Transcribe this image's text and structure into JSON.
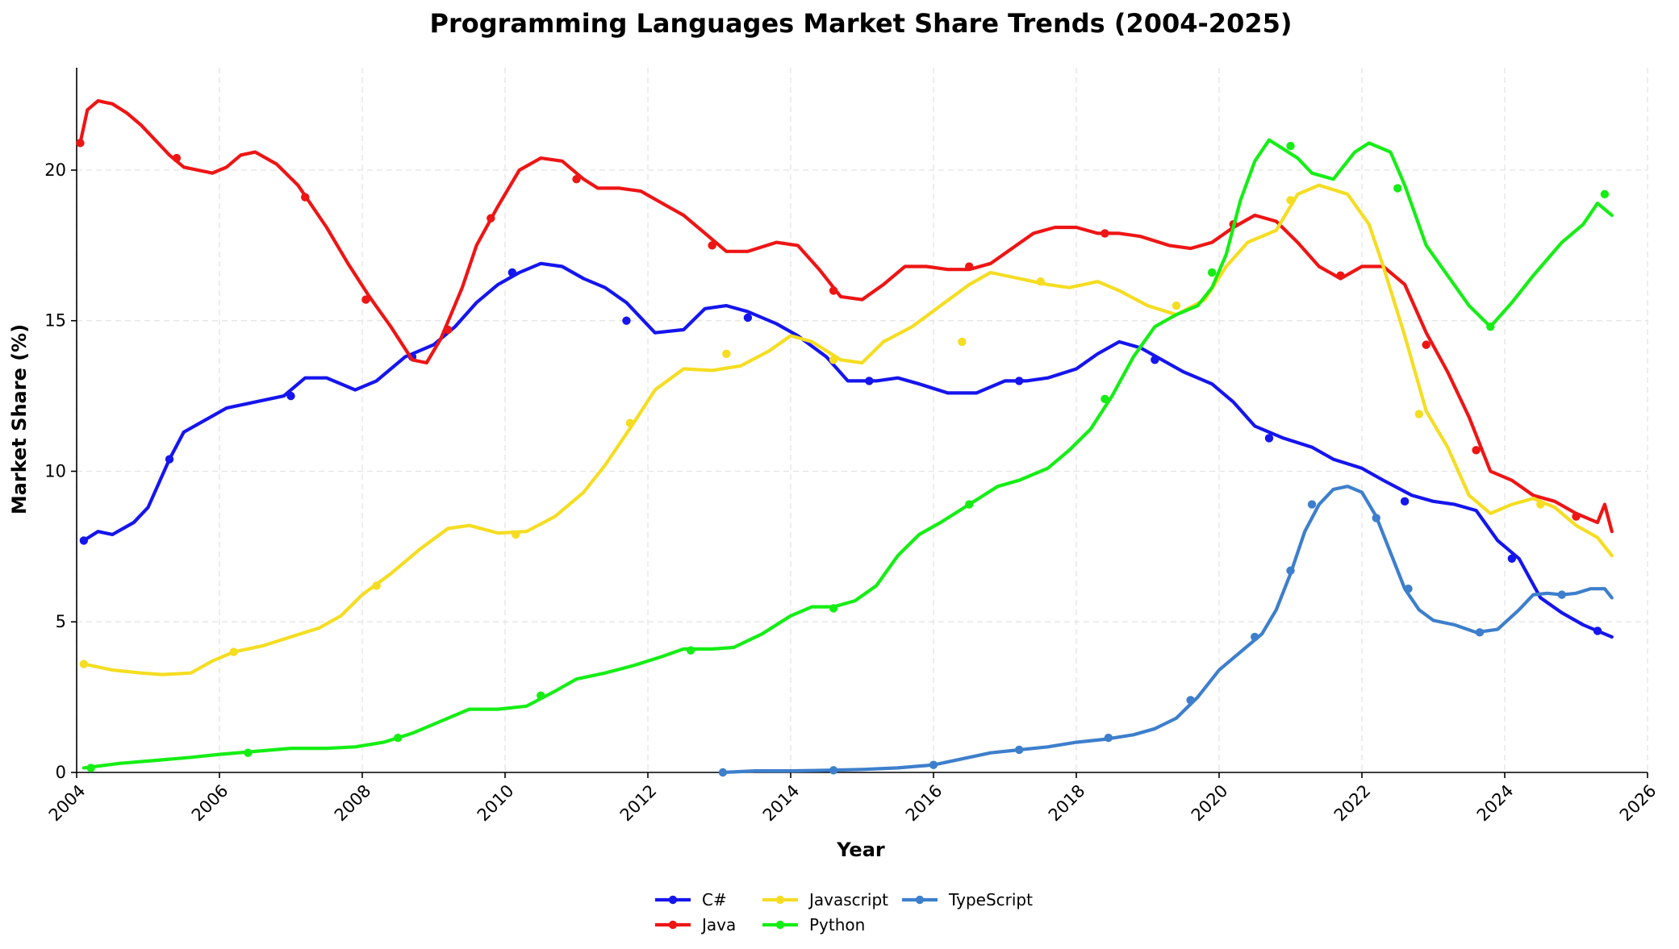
{
  "chart_data": {
    "type": "line",
    "title": "Programming Languages Market Share Trends (2004-2025)",
    "xlabel": "Year",
    "ylabel": "Market Share (%)",
    "xlim": [
      2004,
      2026
    ],
    "ylim": [
      0,
      23.4
    ],
    "x_ticks": [
      2004,
      2006,
      2008,
      2010,
      2012,
      2014,
      2016,
      2018,
      2020,
      2022,
      2024,
      2026
    ],
    "y_ticks": [
      0,
      5,
      10,
      15,
      20
    ],
    "grid": true,
    "legend_position": "bottom-center",
    "series": [
      {
        "name": "C#",
        "color": "#1515ee",
        "x": [
          2004.1,
          2004.3,
          2004.5,
          2004.8,
          2005.0,
          2005.3,
          2005.5,
          2005.8,
          2006.1,
          2006.5,
          2006.9,
          2007.2,
          2007.5,
          2007.9,
          2008.2,
          2008.6,
          2009.0,
          2009.3,
          2009.6,
          2009.9,
          2010.2,
          2010.5,
          2010.8,
          2011.1,
          2011.4,
          2011.7,
          2012.1,
          2012.5,
          2012.8,
          2013.1,
          2013.4,
          2013.8,
          2014.1,
          2014.5,
          2014.8,
          2015.2,
          2015.5,
          2015.8,
          2016.2,
          2016.6,
          2017.0,
          2017.3,
          2017.6,
          2018.0,
          2018.3,
          2018.6,
          2018.9,
          2019.2,
          2019.5,
          2019.9,
          2020.2,
          2020.5,
          2020.9,
          2021.3,
          2021.6,
          2022.0,
          2022.3,
          2022.7,
          2023.0,
          2023.3,
          2023.6,
          2023.9,
          2024.2,
          2024.5,
          2024.8,
          2025.1,
          2025.3,
          2025.5
        ],
        "y": [
          7.7,
          8.0,
          7.9,
          8.3,
          8.8,
          10.4,
          11.3,
          11.7,
          12.1,
          12.3,
          12.5,
          13.1,
          13.1,
          12.7,
          13.0,
          13.8,
          14.2,
          14.8,
          15.6,
          16.2,
          16.6,
          16.9,
          16.8,
          16.4,
          16.1,
          15.6,
          14.6,
          14.7,
          15.4,
          15.5,
          15.3,
          14.9,
          14.5,
          13.8,
          13.0,
          13.0,
          13.1,
          12.9,
          12.6,
          12.6,
          13.0,
          13.0,
          13.1,
          13.4,
          13.9,
          14.3,
          14.1,
          13.7,
          13.3,
          12.9,
          12.3,
          11.5,
          11.1,
          10.8,
          10.4,
          10.1,
          9.7,
          9.2,
          9.0,
          8.9,
          8.7,
          7.7,
          7.1,
          5.8,
          5.3,
          4.9,
          4.7,
          4.5
        ],
        "marker_x": [
          2004.1,
          2005.3,
          2007.0,
          2008.7,
          2010.1,
          2011.7,
          2013.4,
          2015.1,
          2017.2,
          2019.1,
          2020.7,
          2022.6,
          2024.1,
          2025.3
        ],
        "marker_y": [
          7.7,
          10.4,
          12.5,
          13.8,
          16.6,
          15.0,
          15.1,
          13.0,
          13.0,
          13.7,
          11.1,
          9.0,
          7.1,
          4.7
        ]
      },
      {
        "name": "Java",
        "color": "#ee1515",
        "x": [
          2004.05,
          2004.15,
          2004.3,
          2004.5,
          2004.7,
          2004.9,
          2005.1,
          2005.3,
          2005.5,
          2005.9,
          2006.1,
          2006.3,
          2006.5,
          2006.8,
          2007.1,
          2007.3,
          2007.5,
          2007.8,
          2008.1,
          2008.4,
          2008.7,
          2008.9,
          2009.1,
          2009.4,
          2009.6,
          2009.9,
          2010.2,
          2010.5,
          2010.8,
          2011.1,
          2011.3,
          2011.6,
          2011.9,
          2012.2,
          2012.5,
          2012.8,
          2013.1,
          2013.4,
          2013.8,
          2014.1,
          2014.4,
          2014.7,
          2015.0,
          2015.3,
          2015.6,
          2015.9,
          2016.2,
          2016.5,
          2016.8,
          2017.1,
          2017.4,
          2017.7,
          2018.0,
          2018.3,
          2018.6,
          2018.9,
          2019.3,
          2019.6,
          2019.9,
          2020.2,
          2020.5,
          2020.8,
          2021.1,
          2021.4,
          2021.7,
          2022.0,
          2022.3,
          2022.6,
          2022.9,
          2023.2,
          2023.5,
          2023.8,
          2024.1,
          2024.4,
          2024.7,
          2025.0,
          2025.3,
          2025.4,
          2025.5
        ],
        "y": [
          20.9,
          22.0,
          22.3,
          22.2,
          21.9,
          21.5,
          21.0,
          20.5,
          20.1,
          19.9,
          20.1,
          20.5,
          20.6,
          20.2,
          19.5,
          18.8,
          18.1,
          16.9,
          15.8,
          14.8,
          13.7,
          13.6,
          14.4,
          16.1,
          17.5,
          18.8,
          20.0,
          20.4,
          20.3,
          19.7,
          19.4,
          19.4,
          19.3,
          18.9,
          18.5,
          17.9,
          17.3,
          17.3,
          17.6,
          17.5,
          16.7,
          15.8,
          15.7,
          16.2,
          16.8,
          16.8,
          16.7,
          16.7,
          16.9,
          17.4,
          17.9,
          18.1,
          18.1,
          17.9,
          17.9,
          17.8,
          17.5,
          17.4,
          17.6,
          18.1,
          18.5,
          18.3,
          17.6,
          16.8,
          16.4,
          16.8,
          16.8,
          16.2,
          14.6,
          13.3,
          11.8,
          10.0,
          9.7,
          9.2,
          9.0,
          8.6,
          8.3,
          8.9,
          8.0
        ],
        "marker_x": [
          2004.05,
          2005.4,
          2007.2,
          2008.05,
          2009.2,
          2009.8,
          2011.0,
          2012.9,
          2014.6,
          2016.5,
          2018.4,
          2020.2,
          2021.7,
          2022.9,
          2023.6,
          2025.0
        ],
        "marker_y": [
          20.9,
          20.4,
          19.1,
          15.7,
          14.7,
          18.4,
          19.7,
          17.5,
          16.0,
          16.8,
          17.9,
          18.2,
          16.5,
          14.2,
          10.7,
          8.5
        ]
      },
      {
        "name": "Javascript",
        "color": "#f5dd22",
        "x": [
          2004.1,
          2004.5,
          2004.9,
          2005.2,
          2005.6,
          2005.9,
          2006.2,
          2006.6,
          2007.0,
          2007.4,
          2007.7,
          2008.0,
          2008.4,
          2008.8,
          2009.2,
          2009.5,
          2009.9,
          2010.3,
          2010.7,
          2011.1,
          2011.4,
          2011.8,
          2012.1,
          2012.5,
          2012.9,
          2013.3,
          2013.7,
          2014.0,
          2014.3,
          2014.7,
          2015.0,
          2015.3,
          2015.7,
          2016.1,
          2016.5,
          2016.8,
          2017.2,
          2017.6,
          2017.9,
          2018.3,
          2018.6,
          2019.0,
          2019.4,
          2019.8,
          2020.1,
          2020.4,
          2020.8,
          2021.1,
          2021.4,
          2021.8,
          2022.1,
          2022.3,
          2022.6,
          2022.9,
          2023.2,
          2023.5,
          2023.8,
          2024.1,
          2024.4,
          2024.7,
          2025.0,
          2025.3,
          2025.5
        ],
        "y": [
          3.6,
          3.4,
          3.3,
          3.25,
          3.3,
          3.7,
          4.0,
          4.2,
          4.5,
          4.8,
          5.2,
          5.9,
          6.6,
          7.4,
          8.1,
          8.2,
          7.95,
          8.0,
          8.5,
          9.3,
          10.2,
          11.6,
          12.7,
          13.4,
          13.35,
          13.5,
          14.0,
          14.5,
          14.3,
          13.7,
          13.6,
          14.3,
          14.8,
          15.5,
          16.2,
          16.6,
          16.4,
          16.2,
          16.1,
          16.3,
          16.0,
          15.5,
          15.2,
          15.7,
          16.8,
          17.6,
          18.0,
          19.2,
          19.5,
          19.2,
          18.2,
          16.8,
          14.5,
          12.0,
          10.8,
          9.2,
          8.6,
          8.9,
          9.1,
          8.8,
          8.2,
          7.8,
          7.2
        ],
        "marker_x": [
          2004.1,
          2006.2,
          2008.2,
          2010.15,
          2011.75,
          2013.1,
          2014.6,
          2016.4,
          2017.5,
          2019.4,
          2021.0,
          2022.8,
          2024.5
        ],
        "marker_y": [
          3.6,
          4.0,
          6.2,
          7.9,
          11.6,
          13.9,
          13.7,
          14.3,
          16.3,
          15.5,
          19.0,
          11.9,
          8.9
        ]
      },
      {
        "name": "Python",
        "color": "#15ee15",
        "x": [
          2004.1,
          2004.6,
          2005.1,
          2005.6,
          2006.0,
          2006.5,
          2007.0,
          2007.5,
          2007.9,
          2008.3,
          2008.7,
          2009.1,
          2009.5,
          2009.9,
          2010.3,
          2010.7,
          2011.0,
          2011.4,
          2011.8,
          2012.2,
          2012.5,
          2012.9,
          2013.2,
          2013.6,
          2014.0,
          2014.3,
          2014.6,
          2014.9,
          2015.2,
          2015.5,
          2015.8,
          2016.1,
          2016.5,
          2016.9,
          2017.2,
          2017.6,
          2017.9,
          2018.2,
          2018.5,
          2018.8,
          2019.1,
          2019.4,
          2019.7,
          2019.9,
          2020.1,
          2020.3,
          2020.5,
          2020.7,
          2020.9,
          2021.1,
          2021.3,
          2021.6,
          2021.9,
          2022.1,
          2022.4,
          2022.6,
          2022.9,
          2023.2,
          2023.5,
          2023.8,
          2024.1,
          2024.4,
          2024.8,
          2025.1,
          2025.3,
          2025.5
        ],
        "y": [
          0.15,
          0.3,
          0.4,
          0.5,
          0.6,
          0.7,
          0.8,
          0.8,
          0.85,
          1.0,
          1.3,
          1.7,
          2.1,
          2.1,
          2.2,
          2.7,
          3.1,
          3.3,
          3.55,
          3.85,
          4.1,
          4.1,
          4.15,
          4.6,
          5.2,
          5.5,
          5.5,
          5.7,
          6.2,
          7.2,
          7.9,
          8.3,
          8.9,
          9.5,
          9.7,
          10.1,
          10.7,
          11.4,
          12.5,
          13.8,
          14.8,
          15.2,
          15.5,
          16.1,
          17.2,
          19.0,
          20.3,
          21.0,
          20.7,
          20.4,
          19.9,
          19.7,
          20.6,
          20.9,
          20.6,
          19.5,
          17.5,
          16.5,
          15.5,
          14.8,
          15.6,
          16.5,
          17.6,
          18.2,
          18.9,
          18.5
        ],
        "marker_x": [
          2004.2,
          2006.4,
          2008.5,
          2010.5,
          2012.6,
          2014.6,
          2016.5,
          2018.4,
          2019.9,
          2021.0,
          2022.5,
          2023.8,
          2025.4
        ],
        "marker_y": [
          0.15,
          0.65,
          1.15,
          2.55,
          4.05,
          5.45,
          8.9,
          12.4,
          16.6,
          20.8,
          19.4,
          14.8,
          19.2
        ]
      },
      {
        "name": "TypeScript",
        "color": "#3d7fcc",
        "x": [
          2013.05,
          2013.5,
          2014.0,
          2014.5,
          2015.0,
          2015.5,
          2016.0,
          2016.4,
          2016.8,
          2017.2,
          2017.6,
          2018.0,
          2018.4,
          2018.8,
          2019.1,
          2019.4,
          2019.7,
          2020.0,
          2020.3,
          2020.6,
          2020.8,
          2021.0,
          2021.2,
          2021.4,
          2021.6,
          2021.8,
          2022.0,
          2022.2,
          2022.4,
          2022.6,
          2022.8,
          2023.0,
          2023.3,
          2023.6,
          2023.9,
          2024.2,
          2024.4,
          2024.6,
          2024.8,
          2025.0,
          2025.2,
          2025.4,
          2025.5
        ],
        "y": [
          0.0,
          0.05,
          0.05,
          0.07,
          0.1,
          0.15,
          0.25,
          0.45,
          0.65,
          0.75,
          0.85,
          1.0,
          1.1,
          1.25,
          1.45,
          1.8,
          2.5,
          3.4,
          4.0,
          4.6,
          5.4,
          6.6,
          8.0,
          8.9,
          9.4,
          9.5,
          9.3,
          8.5,
          7.3,
          6.1,
          5.4,
          5.05,
          4.9,
          4.65,
          4.75,
          5.4,
          5.9,
          5.95,
          5.9,
          5.95,
          6.1,
          6.1,
          5.8
        ],
        "marker_x": [
          2013.05,
          2014.6,
          2016.0,
          2017.2,
          2018.45,
          2019.6,
          2020.5,
          2021.0,
          2021.3,
          2022.2,
          2022.65,
          2023.65,
          2024.8
        ],
        "marker_y": [
          0.0,
          0.07,
          0.25,
          0.75,
          1.15,
          2.4,
          4.5,
          6.7,
          8.9,
          8.45,
          6.1,
          4.65,
          5.9
        ]
      }
    ]
  }
}
